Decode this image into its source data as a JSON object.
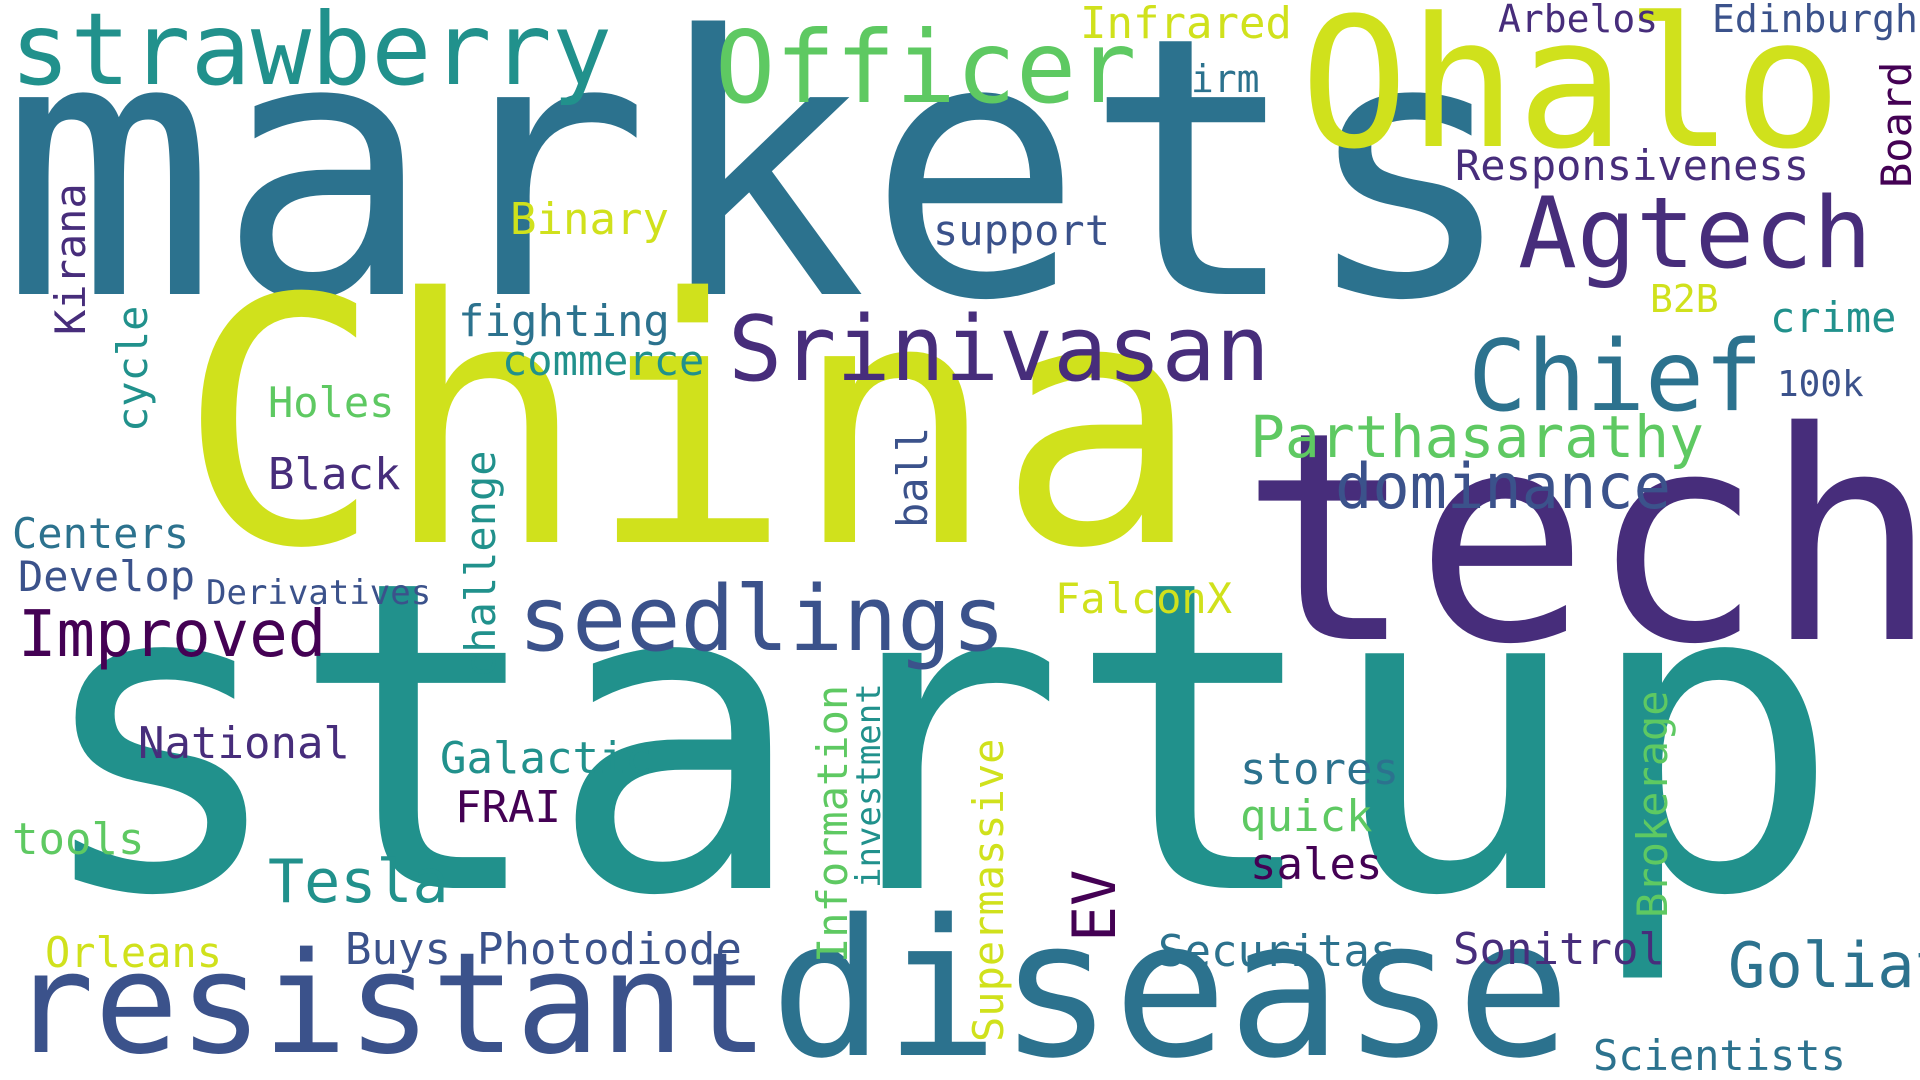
{
  "palette": {
    "yellow": "#d0e11c",
    "lightgreen": "#5ec962",
    "teal": "#21918c",
    "blue": "#2c728e",
    "indigo": "#3b528b",
    "purple": "#472d7b",
    "darkpurple": "#440154",
    "background": "#ffffff"
  },
  "words": [
    {
      "id": "startup",
      "text": "startup",
      "color": "#21918c"
    },
    {
      "id": "markets",
      "text": "markets",
      "color": "#2c728e"
    },
    {
      "id": "china",
      "text": "China",
      "color": "#d0e11c"
    },
    {
      "id": "tech",
      "text": "tech",
      "color": "#472d7b"
    },
    {
      "id": "disease",
      "text": "disease",
      "color": "#2c728e"
    },
    {
      "id": "resistant",
      "text": "resistant",
      "color": "#3b528b"
    },
    {
      "id": "ohalo",
      "text": "Ohalo",
      "color": "#d0e11c"
    },
    {
      "id": "strawberry",
      "text": "strawberry",
      "color": "#21918c"
    },
    {
      "id": "officer",
      "text": "Officer",
      "color": "#5ec962"
    },
    {
      "id": "agtech",
      "text": "Agtech",
      "color": "#472d7b"
    },
    {
      "id": "srinivasan",
      "text": "Srinivasan",
      "color": "#472d7b"
    },
    {
      "id": "chief",
      "text": "Chief",
      "color": "#2c728e"
    },
    {
      "id": "seedlings",
      "text": "seedlings",
      "color": "#3b528b"
    },
    {
      "id": "parthasarathy",
      "text": "Parthasarathy",
      "color": "#5ec962"
    },
    {
      "id": "dominance",
      "text": "dominance",
      "color": "#3b528b"
    },
    {
      "id": "improved",
      "text": "Improved",
      "color": "#440154"
    },
    {
      "id": "goliath",
      "text": "Goliath",
      "color": "#2c728e"
    },
    {
      "id": "tesla",
      "text": "Tesla",
      "color": "#21918c"
    },
    {
      "id": "ev",
      "text": "EV",
      "color": "#440154"
    },
    {
      "id": "infrared",
      "text": "Infrared",
      "color": "#d0e11c"
    },
    {
      "id": "arbelos",
      "text": "Arbelos",
      "color": "#472d7b"
    },
    {
      "id": "edinburgh",
      "text": "Edinburgh",
      "color": "#3b528b"
    },
    {
      "id": "firm",
      "text": "firm",
      "color": "#2c728e"
    },
    {
      "id": "board",
      "text": "Board",
      "color": "#440154"
    },
    {
      "id": "responsiveness",
      "text": "Responsiveness",
      "color": "#472d7b"
    },
    {
      "id": "binary",
      "text": "Binary",
      "color": "#d0e11c"
    },
    {
      "id": "support",
      "text": "support",
      "color": "#3b528b"
    },
    {
      "id": "b2b",
      "text": "B2B",
      "color": "#d0e11c"
    },
    {
      "id": "crime",
      "text": "crime",
      "color": "#21918c"
    },
    {
      "id": "100k",
      "text": "100k",
      "color": "#3b528b"
    },
    {
      "id": "kirana",
      "text": "Kirana",
      "color": "#472d7b"
    },
    {
      "id": "cycle",
      "text": "cycle",
      "color": "#21918c"
    },
    {
      "id": "fighting",
      "text": "fighting",
      "color": "#2c728e"
    },
    {
      "id": "commerce",
      "text": "commerce",
      "color": "#21918c"
    },
    {
      "id": "holes",
      "text": "Holes",
      "color": "#5ec962"
    },
    {
      "id": "black",
      "text": "Black",
      "color": "#472d7b"
    },
    {
      "id": "ball",
      "text": "ball",
      "color": "#3b528b"
    },
    {
      "id": "challenge",
      "text": "challenge",
      "color": "#21918c"
    },
    {
      "id": "centers",
      "text": "Centers",
      "color": "#2c728e"
    },
    {
      "id": "develop",
      "text": "Develop",
      "color": "#3b528b"
    },
    {
      "id": "derivatives",
      "text": "Derivatives",
      "color": "#3b528b"
    },
    {
      "id": "falconx",
      "text": "FalconX",
      "color": "#d0e11c"
    },
    {
      "id": "information",
      "text": "Information",
      "color": "#5ec962"
    },
    {
      "id": "investment",
      "text": "investment",
      "color": "#21918c"
    },
    {
      "id": "supermassive",
      "text": "Supermassive",
      "color": "#d0e11c"
    },
    {
      "id": "brokerage",
      "text": "Brokerage",
      "color": "#5ec962"
    },
    {
      "id": "national",
      "text": "National",
      "color": "#472d7b"
    },
    {
      "id": "galactic",
      "text": "Galactic",
      "color": "#21918c"
    },
    {
      "id": "frai",
      "text": "FRAI",
      "color": "#440154"
    },
    {
      "id": "stores",
      "text": "stores",
      "color": "#2c728e"
    },
    {
      "id": "quick",
      "text": "quick",
      "color": "#5ec962"
    },
    {
      "id": "sales",
      "text": "sales",
      "color": "#440154"
    },
    {
      "id": "tools",
      "text": "tools",
      "color": "#5ec962"
    },
    {
      "id": "orleans",
      "text": "Orleans",
      "color": "#d0e11c"
    },
    {
      "id": "buys",
      "text": "Buys",
      "color": "#3b528b"
    },
    {
      "id": "photodiode",
      "text": "Photodiode",
      "color": "#3b528b"
    },
    {
      "id": "securitas",
      "text": "Securitas",
      "color": "#2c728e"
    },
    {
      "id": "sonitrol",
      "text": "Sonitrol",
      "color": "#472d7b"
    },
    {
      "id": "scientists",
      "text": "Scientists",
      "color": "#2c728e"
    }
  ]
}
